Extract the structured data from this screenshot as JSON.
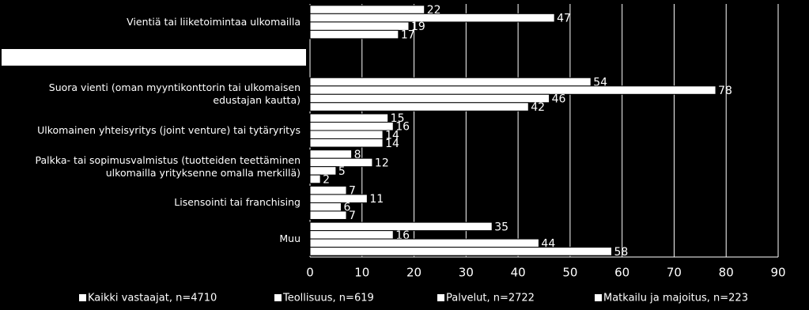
{
  "chart_data": {
    "type": "hbar",
    "categories": [
      "Vientiä tai liiketoimintaa ulkomailla",
      null,
      "Suora vienti (oman myyntikonttorin tai ulkomaisen edustajan kautta)",
      "Ulkomainen yhteisyritys (joint venture) tai tytäryritys",
      "Palkka- tai sopimusvalmistus (tuotteiden teettäminen ulkomailla yrityksenne omalla merkillä)",
      "Lisensointi tai franchising",
      "Muu"
    ],
    "series": [
      {
        "name": "Kaikki vastaajat, n=4710",
        "color": "#ffffff",
        "values": [
          22,
          null,
          54,
          15,
          8,
          7,
          35
        ]
      },
      {
        "name": "Teollisuus, n=619",
        "color": "#ffffff",
        "values": [
          47,
          null,
          78,
          16,
          12,
          11,
          16
        ]
      },
      {
        "name": "Palvelut, n=2722",
        "color": "#ffffff",
        "values": [
          19,
          null,
          46,
          14,
          5,
          6,
          44
        ]
      },
      {
        "name": "Matkailu ja majoitus, n=223",
        "color": "#ffffff",
        "values": [
          17,
          null,
          42,
          14,
          2,
          7,
          58
        ]
      }
    ],
    "xlim": [
      0,
      90
    ],
    "xticks": [
      0,
      10,
      20,
      30,
      40,
      50,
      60,
      70,
      80,
      90
    ],
    "grid": true,
    "legend": "bottom"
  }
}
